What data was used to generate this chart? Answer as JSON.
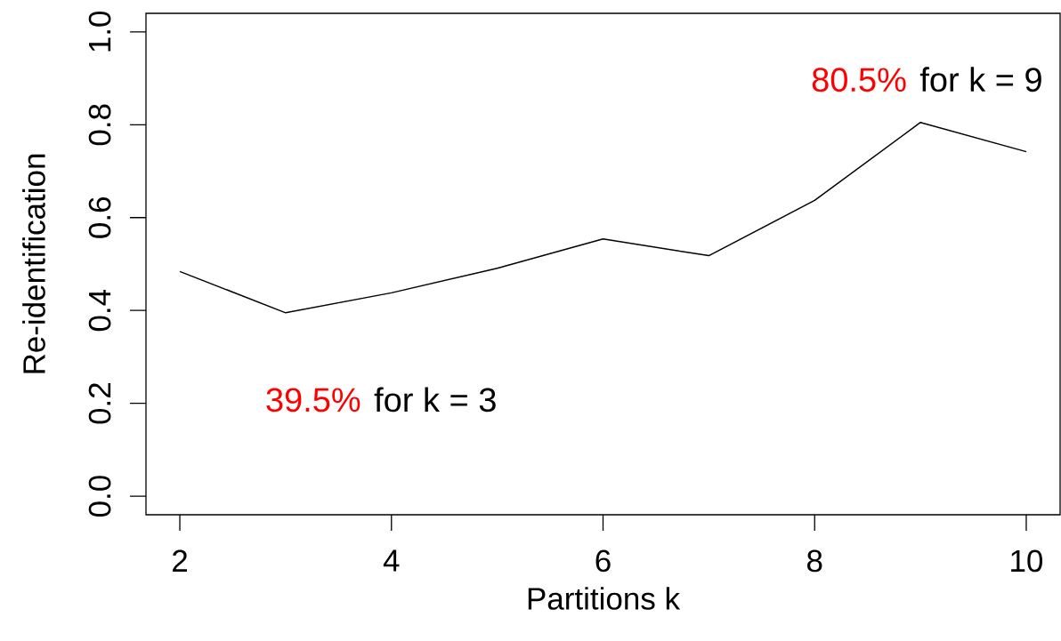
{
  "chart_data": {
    "type": "line",
    "xlabel": "Partitions k",
    "ylabel": "Re-identification",
    "x": [
      2,
      3,
      4,
      5,
      6,
      7,
      8,
      9,
      10
    ],
    "values": [
      0.484,
      0.395,
      0.438,
      0.491,
      0.554,
      0.518,
      0.637,
      0.805,
      0.742
    ],
    "color": "#000000",
    "xlim": [
      1.68,
      10.32
    ],
    "ylim": [
      -0.04,
      1.04
    ],
    "xticks": [
      2,
      4,
      6,
      8,
      10
    ],
    "yticks": [
      {
        "value": 0,
        "label": "0.0"
      },
      {
        "value": 0.2,
        "label": "0.2"
      },
      {
        "value": 0.4,
        "label": "0.4"
      },
      {
        "value": 0.6,
        "label": "0.6"
      },
      {
        "value": 0.8,
        "label": "0.8"
      },
      {
        "value": 1,
        "label": "1.0"
      }
    ],
    "annotations": [
      {
        "text": "80.5%",
        "x": 9,
        "y": 0.805
      },
      "for k = 9",
      {
        "text": "39.5%",
        "x": 3,
        "y": 0.395
      },
      "for k = 3"
    ]
  }
}
